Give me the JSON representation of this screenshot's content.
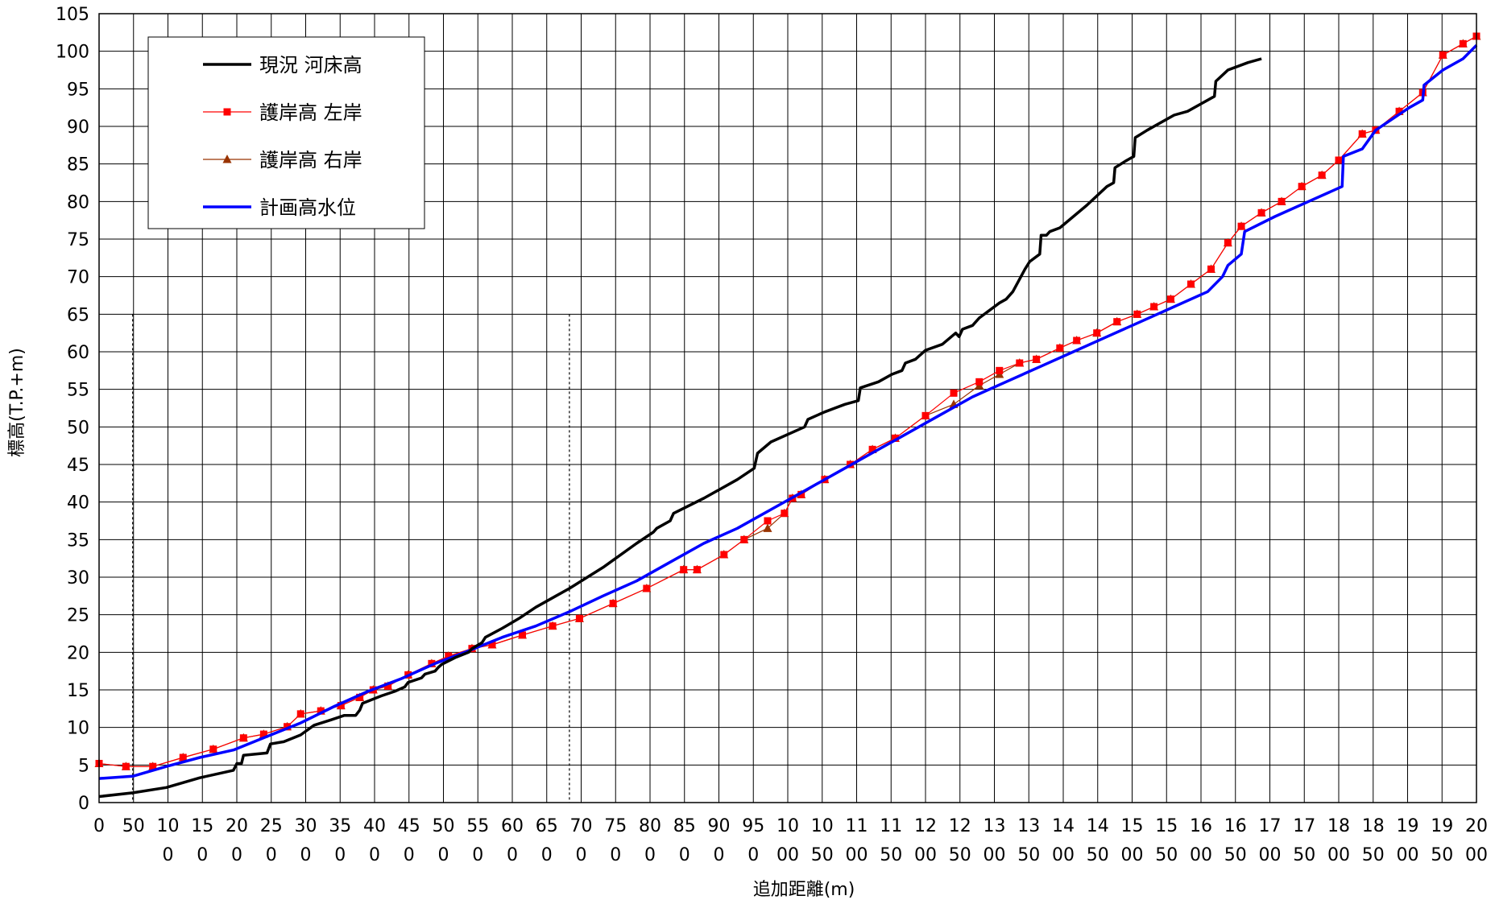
{
  "chart_data": {
    "type": "line",
    "xlabel": "追加距離(m)",
    "ylabel": "標高(T.P.+m)",
    "xlim": [
      0,
      2050
    ],
    "ylim": [
      0,
      105
    ],
    "grid": true,
    "legend_position": "top-left",
    "x_tick_labels": [
      [
        "0"
      ],
      [
        "50"
      ],
      [
        "10",
        "0"
      ],
      [
        "15",
        "0"
      ],
      [
        "20",
        "0"
      ],
      [
        "25",
        "0"
      ],
      [
        "30",
        "0"
      ],
      [
        "35",
        "0"
      ],
      [
        "40",
        "0"
      ],
      [
        "45",
        "0"
      ],
      [
        "50",
        "0"
      ],
      [
        "55",
        "0"
      ],
      [
        "60",
        "0"
      ],
      [
        "65",
        "0"
      ],
      [
        "70",
        "0"
      ],
      [
        "75",
        "0"
      ],
      [
        "80",
        "0"
      ],
      [
        "85",
        "0"
      ],
      [
        "90",
        "0"
      ],
      [
        "95",
        "0"
      ],
      [
        "10",
        "00"
      ],
      [
        "10",
        "50"
      ],
      [
        "11",
        "00"
      ],
      [
        "11",
        "50"
      ],
      [
        "12",
        "00"
      ],
      [
        "12",
        "50"
      ],
      [
        "13",
        "00"
      ],
      [
        "13",
        "50"
      ],
      [
        "14",
        "00"
      ],
      [
        "14",
        "50"
      ],
      [
        "15",
        "00"
      ],
      [
        "15",
        "50"
      ],
      [
        "16",
        "00"
      ],
      [
        "16",
        "50"
      ],
      [
        "17",
        "00"
      ],
      [
        "17",
        "50"
      ],
      [
        "18",
        "00"
      ],
      [
        "18",
        "50"
      ],
      [
        "19",
        "00"
      ],
      [
        "19",
        "50"
      ],
      [
        "20",
        "00"
      ]
    ],
    "y_ticks": [
      0,
      5,
      10,
      15,
      20,
      25,
      30,
      35,
      40,
      45,
      50,
      55,
      60,
      65,
      70,
      75,
      80,
      85,
      90,
      95,
      100,
      105
    ],
    "reference_lines_x": [
      50,
      700
    ],
    "series": [
      {
        "name": "現況 河床高",
        "color": "#000000",
        "marker": "none",
        "points": [
          [
            0,
            0.8
          ],
          [
            50,
            1.3
          ],
          [
            100,
            2.0
          ],
          [
            150,
            3.3
          ],
          [
            200,
            4.3
          ],
          [
            205,
            5.2
          ],
          [
            212,
            5.2
          ],
          [
            215,
            6.3
          ],
          [
            250,
            6.6
          ],
          [
            255,
            7.8
          ],
          [
            275,
            8.1
          ],
          [
            300,
            9.0
          ],
          [
            320,
            10.3
          ],
          [
            345,
            11.0
          ],
          [
            365,
            11.6
          ],
          [
            382,
            11.6
          ],
          [
            388,
            12.3
          ],
          [
            392,
            13.2
          ],
          [
            420,
            14.2
          ],
          [
            440,
            14.8
          ],
          [
            455,
            15.4
          ],
          [
            460,
            16.0
          ],
          [
            480,
            16.6
          ],
          [
            485,
            17.1
          ],
          [
            500,
            17.5
          ],
          [
            505,
            18.0
          ],
          [
            510,
            18.4
          ],
          [
            530,
            19.3
          ],
          [
            550,
            20.0
          ],
          [
            555,
            20.5
          ],
          [
            570,
            21.3
          ],
          [
            575,
            22.0
          ],
          [
            600,
            23.2
          ],
          [
            625,
            24.5
          ],
          [
            650,
            26.0
          ],
          [
            680,
            27.5
          ],
          [
            700,
            28.5
          ],
          [
            750,
            31.3
          ],
          [
            800,
            34.5
          ],
          [
            825,
            36.0
          ],
          [
            830,
            36.5
          ],
          [
            850,
            37.5
          ],
          [
            855,
            38.5
          ],
          [
            900,
            40.5
          ],
          [
            950,
            43.0
          ],
          [
            975,
            44.5
          ],
          [
            980,
            46.5
          ],
          [
            1000,
            48.0
          ],
          [
            1050,
            50.0
          ],
          [
            1055,
            51.0
          ],
          [
            1080,
            52.0
          ],
          [
            1110,
            53.0
          ],
          [
            1130,
            53.5
          ],
          [
            1133,
            55.2
          ],
          [
            1160,
            56.0
          ],
          [
            1180,
            57.0
          ],
          [
            1195,
            57.5
          ],
          [
            1200,
            58.5
          ],
          [
            1215,
            59.0
          ],
          [
            1230,
            60.2
          ],
          [
            1255,
            61.0
          ],
          [
            1275,
            62.5
          ],
          [
            1280,
            62.0
          ],
          [
            1285,
            63.0
          ],
          [
            1300,
            63.5
          ],
          [
            1310,
            64.5
          ],
          [
            1325,
            65.5
          ],
          [
            1340,
            66.5
          ],
          [
            1350,
            67.0
          ],
          [
            1360,
            68.0
          ],
          [
            1378,
            71.0
          ],
          [
            1385,
            72.0
          ],
          [
            1400,
            73.0
          ],
          [
            1402,
            75.5
          ],
          [
            1410,
            75.5
          ],
          [
            1415,
            76.0
          ],
          [
            1430,
            76.5
          ],
          [
            1470,
            79.5
          ],
          [
            1500,
            82.0
          ],
          [
            1510,
            82.5
          ],
          [
            1512,
            84.5
          ],
          [
            1530,
            85.5
          ],
          [
            1540,
            86.0
          ],
          [
            1542,
            88.5
          ],
          [
            1560,
            89.5
          ],
          [
            1600,
            91.5
          ],
          [
            1620,
            92.0
          ],
          [
            1640,
            93.0
          ],
          [
            1660,
            94.0
          ],
          [
            1662,
            96.0
          ],
          [
            1680,
            97.5
          ],
          [
            1710,
            98.5
          ],
          [
            1730,
            99.0
          ]
        ]
      },
      {
        "name": "護岸高 左岸",
        "color": "#ff0000",
        "marker": "square",
        "points": [
          [
            0,
            5.2
          ],
          [
            40,
            4.8
          ],
          [
            80,
            4.8
          ],
          [
            125,
            6.0
          ],
          [
            170,
            7.1
          ],
          [
            215,
            8.6
          ],
          [
            245,
            9.1
          ],
          [
            280,
            10.1
          ],
          [
            300,
            11.8
          ],
          [
            330,
            12.2
          ],
          [
            360,
            12.9
          ],
          [
            388,
            14.0
          ],
          [
            408,
            15.0
          ],
          [
            430,
            15.5
          ],
          [
            460,
            17.0
          ],
          [
            495,
            18.5
          ],
          [
            520,
            19.5
          ],
          [
            555,
            20.5
          ],
          [
            585,
            21.0
          ],
          [
            630,
            22.3
          ],
          [
            675,
            23.5
          ],
          [
            715,
            24.5
          ],
          [
            765,
            26.5
          ],
          [
            815,
            28.5
          ],
          [
            870,
            31.0
          ],
          [
            890,
            31.0
          ],
          [
            930,
            33.0
          ],
          [
            960,
            35.0
          ],
          [
            995,
            37.5
          ],
          [
            1020,
            38.5
          ],
          [
            1032,
            40.5
          ],
          [
            1045,
            41.0
          ],
          [
            1080,
            43.0
          ],
          [
            1118,
            45.0
          ],
          [
            1151,
            47.0
          ],
          [
            1185,
            48.5
          ],
          [
            1230,
            51.5
          ],
          [
            1272,
            54.5
          ],
          [
            1310,
            56.0
          ],
          [
            1340,
            57.5
          ],
          [
            1370,
            58.5
          ],
          [
            1395,
            59.0
          ],
          [
            1430,
            60.5
          ],
          [
            1455,
            61.5
          ],
          [
            1485,
            62.5
          ],
          [
            1515,
            64.0
          ],
          [
            1545,
            65.0
          ],
          [
            1570,
            66.0
          ],
          [
            1595,
            67.0
          ],
          [
            1625,
            69.0
          ],
          [
            1655,
            71.0
          ],
          [
            1680,
            74.5
          ],
          [
            1700,
            76.7
          ],
          [
            1730,
            78.5
          ],
          [
            1760,
            80.0
          ],
          [
            1790,
            82.0
          ],
          [
            1820,
            83.5
          ],
          [
            1845,
            85.5
          ],
          [
            1880,
            89.0
          ],
          [
            1900,
            89.5
          ],
          [
            1935,
            92.0
          ],
          [
            1970,
            94.5
          ],
          [
            2000,
            99.5
          ],
          [
            2030,
            101.0
          ],
          [
            2050,
            102.0
          ]
        ]
      },
      {
        "name": "護岸高 右岸",
        "color": "#993300",
        "marker": "triangle",
        "points": [
          [
            0,
            5.2
          ],
          [
            40,
            4.8
          ],
          [
            80,
            4.8
          ],
          [
            125,
            6.0
          ],
          [
            170,
            7.1
          ],
          [
            215,
            8.6
          ],
          [
            245,
            9.1
          ],
          [
            280,
            10.1
          ],
          [
            300,
            11.8
          ],
          [
            330,
            12.2
          ],
          [
            360,
            12.9
          ],
          [
            388,
            14.0
          ],
          [
            408,
            15.0
          ],
          [
            430,
            15.5
          ],
          [
            460,
            17.0
          ],
          [
            495,
            18.5
          ],
          [
            520,
            19.5
          ],
          [
            555,
            20.5
          ],
          [
            585,
            21.0
          ],
          [
            630,
            22.3
          ],
          [
            675,
            23.5
          ],
          [
            715,
            24.5
          ],
          [
            765,
            26.5
          ],
          [
            815,
            28.5
          ],
          [
            870,
            31.0
          ],
          [
            890,
            31.0
          ],
          [
            930,
            33.0
          ],
          [
            960,
            35.0
          ],
          [
            995,
            36.5
          ],
          [
            1020,
            38.5
          ],
          [
            1032,
            40.5
          ],
          [
            1045,
            41.0
          ],
          [
            1080,
            43.0
          ],
          [
            1118,
            45.0
          ],
          [
            1151,
            47.0
          ],
          [
            1185,
            48.5
          ],
          [
            1230,
            51.5
          ],
          [
            1272,
            53.0
          ],
          [
            1310,
            55.5
          ],
          [
            1340,
            57.0
          ],
          [
            1370,
            58.5
          ],
          [
            1395,
            59.0
          ],
          [
            1430,
            60.5
          ],
          [
            1455,
            61.5
          ],
          [
            1485,
            62.5
          ],
          [
            1515,
            64.0
          ],
          [
            1545,
            65.0
          ],
          [
            1570,
            66.0
          ],
          [
            1595,
            67.0
          ],
          [
            1625,
            69.0
          ],
          [
            1655,
            71.0
          ],
          [
            1680,
            74.5
          ],
          [
            1700,
            76.7
          ],
          [
            1730,
            78.5
          ],
          [
            1760,
            80.0
          ],
          [
            1790,
            82.0
          ],
          [
            1820,
            83.5
          ],
          [
            1845,
            85.5
          ],
          [
            1880,
            89.0
          ],
          [
            1900,
            89.5
          ],
          [
            1935,
            92.0
          ],
          [
            1970,
            94.5
          ],
          [
            2000,
            99.5
          ],
          [
            2030,
            101.0
          ],
          [
            2050,
            102.0
          ]
        ]
      },
      {
        "name": "計画高水位",
        "color": "#0000ff",
        "marker": "none",
        "points": [
          [
            0,
            3.2
          ],
          [
            50,
            3.5
          ],
          [
            100,
            4.8
          ],
          [
            150,
            6.0
          ],
          [
            200,
            7.0
          ],
          [
            250,
            8.8
          ],
          [
            300,
            10.6
          ],
          [
            350,
            12.8
          ],
          [
            400,
            14.8
          ],
          [
            450,
            16.5
          ],
          [
            500,
            18.5
          ],
          [
            550,
            20.2
          ],
          [
            600,
            22.0
          ],
          [
            650,
            23.5
          ],
          [
            700,
            25.4
          ],
          [
            750,
            27.5
          ],
          [
            800,
            29.5
          ],
          [
            850,
            32.0
          ],
          [
            900,
            34.5
          ],
          [
            950,
            36.5
          ],
          [
            1000,
            39.0
          ],
          [
            1050,
            41.5
          ],
          [
            1100,
            44.0
          ],
          [
            1150,
            46.5
          ],
          [
            1200,
            49.0
          ],
          [
            1250,
            51.5
          ],
          [
            1300,
            54.0
          ],
          [
            1350,
            56.0
          ],
          [
            1400,
            58.0
          ],
          [
            1450,
            60.0
          ],
          [
            1500,
            62.0
          ],
          [
            1550,
            64.0
          ],
          [
            1600,
            66.0
          ],
          [
            1650,
            68.0
          ],
          [
            1672,
            70.0
          ],
          [
            1680,
            71.5
          ],
          [
            1700,
            73.0
          ],
          [
            1705,
            76.0
          ],
          [
            1750,
            78.0
          ],
          [
            1800,
            80.0
          ],
          [
            1850,
            82.0
          ],
          [
            1852,
            86.0
          ],
          [
            1880,
            87.0
          ],
          [
            1900,
            89.5
          ],
          [
            1950,
            92.5
          ],
          [
            1970,
            93.5
          ],
          [
            1972,
            95.5
          ],
          [
            2000,
            97.5
          ],
          [
            2030,
            99.0
          ],
          [
            2050,
            100.8
          ]
        ]
      }
    ]
  }
}
